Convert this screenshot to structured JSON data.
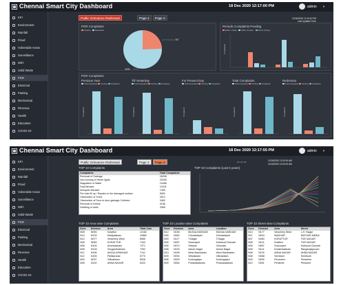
{
  "app": {
    "title": "Chennai Smart City Dashboard",
    "user": "admin"
  },
  "sidebar": {
    "items": [
      {
        "label": "KPI",
        "icon": "kpi-icon"
      },
      {
        "label": "Environment",
        "icon": "environment-icon"
      },
      {
        "label": "Rainfall",
        "icon": "rainfall-icon"
      },
      {
        "label": "Flood",
        "icon": "flood-icon"
      },
      {
        "label": "Vulnerable Areas",
        "icon": "warning-icon"
      },
      {
        "label": "Surveillance",
        "icon": "camera-icon"
      },
      {
        "label": "WiFi",
        "icon": "wifi-icon"
      },
      {
        "label": "Solid Waste",
        "icon": "trash-icon"
      },
      {
        "label": "PGR",
        "icon": "grievance-icon"
      },
      {
        "label": "Electrical",
        "icon": "bolt-icon"
      },
      {
        "label": "Parking",
        "icon": "parking-icon"
      },
      {
        "label": "Mechanical",
        "icon": "gear-icon"
      },
      {
        "label": "Revenue",
        "icon": "revenue-icon"
      },
      {
        "label": "Health",
        "icon": "health-icon"
      },
      {
        "label": "Education",
        "icon": "education-icon"
      },
      {
        "label": "COVID-19",
        "icon": "covid-icon"
      }
    ]
  },
  "view1": {
    "datetime": "18 Dec 2020 12:17:00 PM",
    "tabs": [
      "Public Grievance Redressal",
      "Page 2",
      "Page 3"
    ],
    "pgr_complaints": {
      "title": "PGR Complaints",
      "legend": [
        "Pending",
        "Redressed"
      ],
      "colors": [
        "#f0856e",
        "#a9d8e6"
      ],
      "pie_labels": [
        "357",
        "2695"
      ]
    },
    "pending": {
      "title": "Periodic Complaints Pending",
      "stamp1": "12/18/2020 12:16:10 PM",
      "stamp2": "Last Updated Time",
      "legend": [
        "Within 1 Week",
        "Within 30 Days",
        "Above 30 Days"
      ],
      "colors": [
        "#f0856e",
        "#a9d8e6",
        "#6fb7c9"
      ],
      "ylabel": "Complaints"
    },
    "pgr_complaints_row": {
      "title": "PGR Complaints"
    },
    "small_charts": [
      {
        "title": "Previous Year"
      },
      {
        "title": "Till Yesterday"
      },
      {
        "title": "For Present Day"
      },
      {
        "title": "Total Complaints"
      },
      {
        "title": "Redressal"
      }
    ],
    "small_legend": [
      "Total Complaints",
      "Pending",
      "Completed"
    ],
    "small_ylabel": "Complaints"
  },
  "view2": {
    "datetime": "18 Dec 2020 12:17:55 PM",
    "tabs": [
      "Public Grievance Redressal",
      "Page 2",
      "Page 3"
    ],
    "date_from": "12/18/2020 12:00:00 AM",
    "date_to": "12/18/2020 12:00:00 AM",
    "top10_complaints": {
      "title": "TOP 10 Complaints",
      "headers": [
        "Complaints",
        "Total Complaints"
      ],
      "rows": [
        [
          "Removal of Garbage",
          "28298"
        ],
        [
          "Non burning of Street lights",
          "20305"
        ],
        [
          "Stagnation of Water",
          "10456"
        ],
        [
          "Dog Menace",
          "10241"
        ],
        [
          "Mosquito Menace",
          "7459"
        ],
        [
          "Pot-hole fill up / Repairs to the damaged surface",
          "5052"
        ],
        [
          "Obstruction of Trees",
          "3912"
        ],
        [
          "Obstruction of Door to door garbage Collector",
          "3462"
        ],
        [
          "Removal of Debris",
          "3156"
        ],
        [
          "Desilting of drain",
          "2965"
        ]
      ]
    },
    "line_chart": {
      "title": "TOP 10 Complaints (Last 5 years)"
    },
    "area_table": {
      "title": "TOP 10 Area wise Complaints",
      "headers": [
        "Zone",
        "Division",
        "Area",
        "Total Com"
      ],
      "rows": [
        [
          "N08",
          "N094",
          "Kolathur",
          "12182"
        ],
        [
          "N13",
          "N109",
          "Madipakkam",
          "10882"
        ],
        [
          "N13",
          "N077",
          "Velachery West",
          "8565"
        ],
        [
          "N08",
          "N083",
          "KORATTUR",
          "7443"
        ],
        [
          "N08",
          "N105",
          "Arumbakkam",
          "7371"
        ],
        [
          "N08",
          "N128",
          "Virugambakkam",
          "7292"
        ],
        [
          "N12",
          "N156",
          "ANGULAPAKKAM",
          "7141"
        ],
        [
          "N12",
          "N155",
          "Pallikaranai",
          "6770"
        ],
        [
          "N09",
          "N097",
          "Villivakkam",
          "6526"
        ],
        [
          "N08",
          "N100",
          "ANNA NAGAR",
          "6323"
        ]
      ]
    },
    "location_table": {
      "title": "TOP 10 Location wise Complaints",
      "headers": [
        "Zone",
        "Division",
        "Area",
        "Location"
      ],
      "rows": [
        [
          "N12",
          "N156",
          "MUGALIVAKKAM",
          "MUGALIVAKKAM"
        ],
        [
          "N05",
          "N062",
          "Chindadripet",
          "Chindadripet"
        ],
        [
          "N09",
          "N117",
          "T.Nagar",
          "T.Nagar"
        ],
        [
          "N05",
          "N057",
          "Sowcarpet",
          "Kothaval Chavadi"
        ],
        [
          "N05",
          "N074",
          "Ottripali",
          "Chinnala"
        ],
        [
          "N08",
          "N100",
          "Ashok Nagar",
          "Ashok Nagar"
        ],
        [
          "N13",
          "N155",
          "West Mambalam",
          "West Mambalam"
        ],
        [
          "N09",
          "N094",
          "Villivakkam",
          "Villivakkam"
        ],
        [
          "N08",
          "N003",
          "Kodungaiyur",
          "Kodungaiyur"
        ],
        [
          "N09",
          "N064",
          "Purasawakkam",
          "Purasawakkam"
        ]
      ]
    },
    "street_table": {
      "title": "TOP 10 Street wise Complaints",
      "headers": [
        "Zone",
        "Division",
        "Area",
        "Street"
      ],
      "rows": [
        [
          "N13",
          "N177",
          "Velachery West",
          "L.H. Nagar"
        ],
        [
          "N07",
          "N004",
          "MADHUR",
          "MATHUR MMDA"
        ],
        [
          "N07",
          "N083",
          "KORATTUR",
          "TNS NAGAR"
        ],
        [
          "N08",
          "N114",
          "Kolathur",
          "TNS NAGAR"
        ],
        [
          "N05",
          "N057",
          "Sowcarpet",
          "Kothaval Chavadi"
        ],
        [
          "N08",
          "N114",
          "Kodambakkam",
          "Rangarajapuram"
        ],
        [
          "N08",
          "N100",
          "ANNA NAGAR",
          "ANNA NAGAR"
        ],
        [
          "N08",
          "N068",
          "Sembium",
          "Sembium"
        ],
        [
          "N09",
          "N009",
          "Perambur",
          "Perambur"
        ],
        [
          "N10",
          "N051",
          "Periamet",
          "Periamet"
        ]
      ]
    }
  }
}
